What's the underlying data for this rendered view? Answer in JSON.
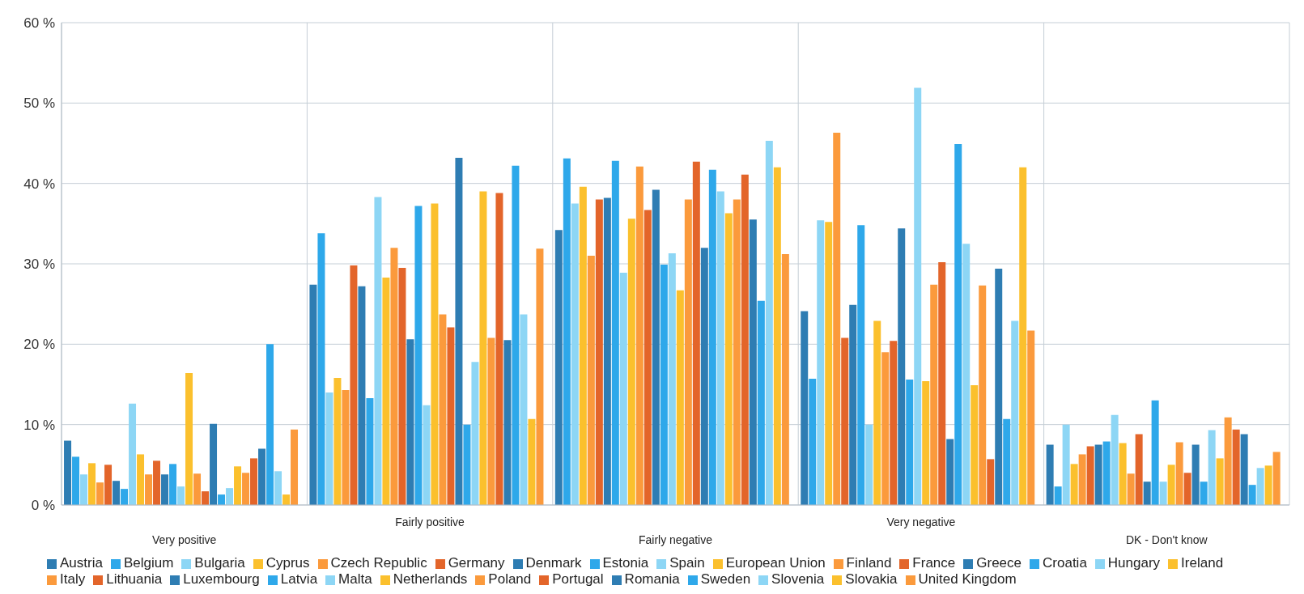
{
  "chart_data": {
    "type": "bar",
    "categories": [
      "Very positive",
      "Fairly positive",
      "Fairly negative",
      "Very negative",
      "DK - Don't know"
    ],
    "ylim": [
      0,
      60
    ],
    "yticks": [
      {
        "value": 0,
        "label": "0 %"
      },
      {
        "value": 10,
        "label": "10 %"
      },
      {
        "value": 20,
        "label": "20 %"
      },
      {
        "value": 30,
        "label": "30 %"
      },
      {
        "value": 40,
        "label": "40 %"
      },
      {
        "value": 50,
        "label": "50 %"
      },
      {
        "value": 60,
        "label": "60 %"
      }
    ],
    "grid": true,
    "legend": "bottom",
    "series": [
      {
        "name": "Austria",
        "color": "#2e7db3",
        "values": [
          8,
          27.4,
          34.2,
          24.1,
          7.5
        ]
      },
      {
        "name": "Belgium",
        "color": "#2ea8ea",
        "values": [
          6,
          33.8,
          43.1,
          15.7,
          2.3
        ]
      },
      {
        "name": "Bulgaria",
        "color": "#8dd6f5",
        "values": [
          3.8,
          14,
          37.5,
          35.4,
          10
        ]
      },
      {
        "name": "Cyprus",
        "color": "#fbc02d",
        "values": [
          5.2,
          15.8,
          39.6,
          35.2,
          5.1
        ]
      },
      {
        "name": "Czech Republic",
        "color": "#fb9a3c",
        "values": [
          2.8,
          14.3,
          31,
          46.3,
          6.3
        ]
      },
      {
        "name": "Germany",
        "color": "#e3652a",
        "values": [
          5,
          29.8,
          38,
          20.8,
          7.3
        ]
      },
      {
        "name": "Denmark",
        "color": "#2e7db3",
        "values": [
          3,
          27.2,
          38.2,
          24.9,
          7.5
        ]
      },
      {
        "name": "Estonia",
        "color": "#2ea8ea",
        "values": [
          2,
          13.3,
          42.8,
          34.8,
          7.9
        ]
      },
      {
        "name": "Spain",
        "color": "#8dd6f5",
        "values": [
          12.6,
          38.3,
          28.9,
          10,
          11.2
        ]
      },
      {
        "name": "European Union",
        "color": "#fbc02d",
        "values": [
          6.3,
          28.3,
          35.6,
          22.9,
          7.7
        ]
      },
      {
        "name": "Finland",
        "color": "#fb9a3c",
        "values": [
          3.8,
          32,
          42.1,
          19,
          3.9
        ]
      },
      {
        "name": "France",
        "color": "#e3652a",
        "values": [
          5.5,
          29.5,
          36.7,
          20.4,
          8.8
        ]
      },
      {
        "name": "Greece",
        "color": "#2e7db3",
        "values": [
          3.8,
          20.6,
          39.2,
          34.4,
          2.9
        ]
      },
      {
        "name": "Croatia",
        "color": "#2ea8ea",
        "values": [
          5.1,
          37.2,
          29.9,
          15.6,
          13
        ]
      },
      {
        "name": "Hungary",
        "color": "#8dd6f5",
        "values": [
          2.3,
          12.4,
          31.3,
          51.9,
          2.9
        ]
      },
      {
        "name": "Ireland",
        "color": "#fbc02d",
        "values": [
          16.4,
          37.5,
          26.7,
          15.4,
          5
        ]
      },
      {
        "name": "Italy",
        "color": "#fb9a3c",
        "values": [
          3.9,
          23.7,
          38,
          27.4,
          7.8
        ]
      },
      {
        "name": "Lithuania",
        "color": "#e3652a",
        "values": [
          1.7,
          22.1,
          42.7,
          30.2,
          4
        ]
      },
      {
        "name": "Luxembourg",
        "color": "#2e7db3",
        "values": [
          10.1,
          43.2,
          32,
          8.2,
          7.5
        ]
      },
      {
        "name": "Latvia",
        "color": "#2ea8ea",
        "values": [
          1.3,
          10,
          41.7,
          44.9,
          2.9
        ]
      },
      {
        "name": "Malta",
        "color": "#8dd6f5",
        "values": [
          2.1,
          17.8,
          39,
          32.5,
          9.3
        ]
      },
      {
        "name": "Netherlands",
        "color": "#fbc02d",
        "values": [
          4.8,
          39,
          36.3,
          14.9,
          5.8
        ]
      },
      {
        "name": "Poland",
        "color": "#fb9a3c",
        "values": [
          4,
          20.8,
          38,
          27.3,
          10.9
        ]
      },
      {
        "name": "Portugal",
        "color": "#e3652a",
        "values": [
          5.8,
          38.8,
          41.1,
          5.7,
          9.4
        ]
      },
      {
        "name": "Romania",
        "color": "#2e7db3",
        "values": [
          7,
          20.5,
          35.5,
          29.4,
          8.8
        ]
      },
      {
        "name": "Sweden",
        "color": "#2ea8ea",
        "values": [
          20,
          42.2,
          25.4,
          10.7,
          2.5
        ]
      },
      {
        "name": "Slovenia",
        "color": "#8dd6f5",
        "values": [
          4.2,
          23.7,
          45.3,
          22.9,
          4.6
        ]
      },
      {
        "name": "Slovakia",
        "color": "#fbc02d",
        "values": [
          1.3,
          10.7,
          42,
          42,
          4.9
        ]
      },
      {
        "name": "United Kingdom",
        "color": "#fb9a3c",
        "values": [
          9.4,
          31.9,
          31.2,
          21.7,
          6.6
        ]
      }
    ]
  }
}
